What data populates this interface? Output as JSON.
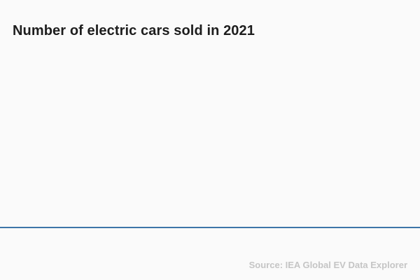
{
  "page": {
    "background_color": "#fafafa"
  },
  "chart": {
    "title": "Number of electric cars sold in 2021",
    "source": "Source: IEA Global EV Data Explorer",
    "title_color": "#1d1d1d",
    "source_color": "#c5c5c5",
    "axis_line_color": "#3d76a8"
  },
  "chart_data": {
    "type": "bar",
    "title": "Number of electric cars sold in 2021",
    "xlabel": "",
    "ylabel": "",
    "categories": [],
    "values": [],
    "grid": false,
    "legend": "none",
    "note": "Empty chart frame: no data series, tick labels, or gridlines are rendered; only the title, a full-width baseline axis line, and a source credit are visible."
  }
}
